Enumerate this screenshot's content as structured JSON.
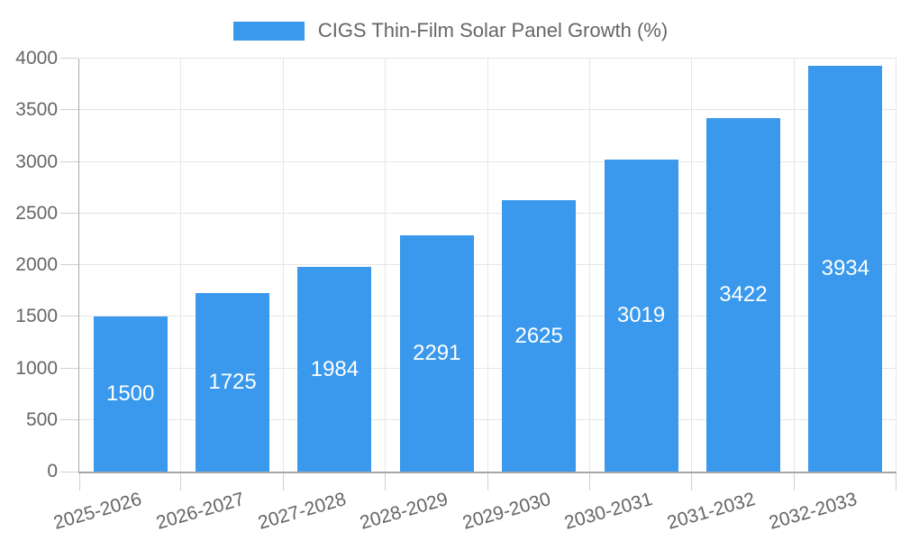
{
  "legend": {
    "label": "CIGS Thin-Film Solar Panel Growth (%)"
  },
  "colors": {
    "bar": "#3a99ec",
    "grid": "#e6e6e6",
    "axis": "#a9a9a9",
    "axis_baseline": "#a6a6a6",
    "tick": "#cfcfcf",
    "text": "#666666",
    "value_label": "#ffffff"
  },
  "chart_data": {
    "type": "bar",
    "title": "CIGS Thin-Film Solar Panel Growth (%)",
    "categories": [
      "2025-2026",
      "2026-2027",
      "2027-2028",
      "2028-2029",
      "2029-2030",
      "2030-2031",
      "2031-2032",
      "2032-2033"
    ],
    "values": [
      1500,
      1725,
      1984,
      2291,
      2625,
      3019,
      3422,
      3934
    ],
    "yticks": [
      "0",
      "500",
      "1000",
      "1500",
      "2000",
      "2500",
      "3000",
      "3500",
      "4000"
    ],
    "xlabel": "",
    "ylabel": "",
    "ylim": [
      0,
      4000
    ],
    "ytick_step": 500,
    "grid": true,
    "legend_position": "top-center",
    "value_label_position": "inside-center",
    "x_label_rotation_deg": -16
  }
}
